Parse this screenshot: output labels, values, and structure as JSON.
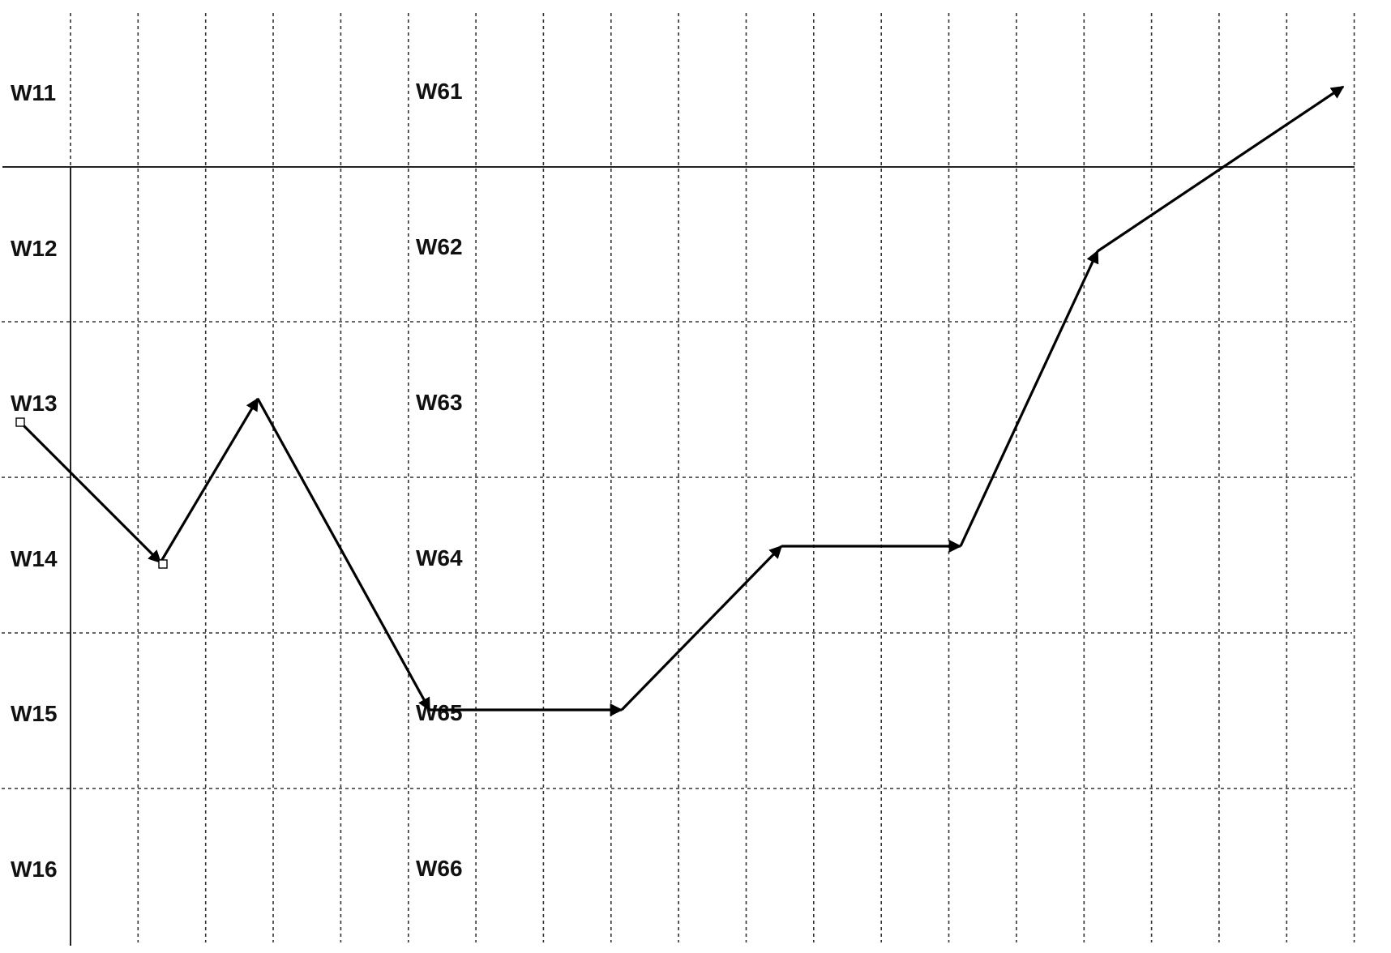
{
  "labels": {
    "left": [
      "W11",
      "W12",
      "W13",
      "W14",
      "W15",
      "W16"
    ],
    "right": [
      "W61",
      "W62",
      "W63",
      "W64",
      "W65",
      "W66"
    ]
  },
  "colors": {
    "line": "#000000",
    "grid": "#333333",
    "text": "#111111",
    "background": "#ffffff"
  }
}
